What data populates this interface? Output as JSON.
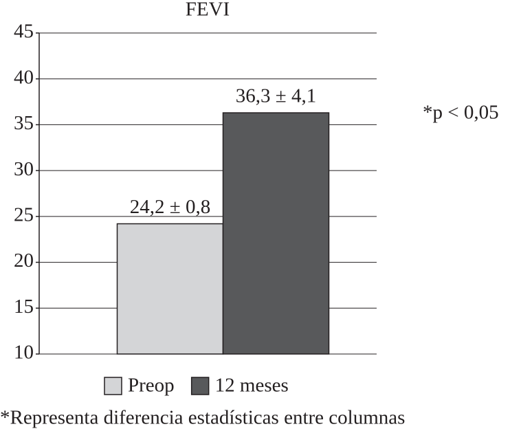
{
  "chart_data": {
    "type": "bar",
    "title": "FEVI",
    "categories": [
      null
    ],
    "series": [
      {
        "name": "Preop",
        "color": "#d4d5d7",
        "values": [
          24.2
        ],
        "value_labels": [
          "24,2 ± 0,8"
        ]
      },
      {
        "name": "12 meses",
        "color": "#58595b",
        "values": [
          36.3
        ],
        "value_labels": [
          "36,3 ± 4,1"
        ]
      }
    ],
    "ylim": [
      10,
      45
    ],
    "yticks": [
      10,
      15,
      20,
      25,
      30,
      35,
      40,
      45
    ],
    "grid": true,
    "legend": "bottom",
    "annotation": "*p < 0,05",
    "footnote": "*Representa diferencia estadísticas entre columnas"
  }
}
